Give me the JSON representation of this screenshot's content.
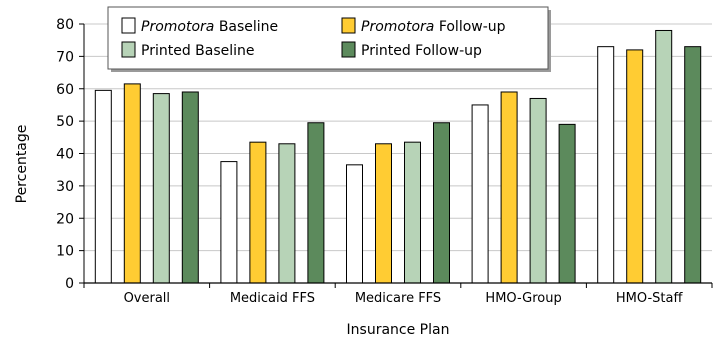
{
  "chart_data": {
    "type": "bar",
    "title": "",
    "xlabel": "Insurance Plan",
    "ylabel": "Percentage",
    "ylim": [
      0,
      80
    ],
    "yticks": [
      0,
      10,
      20,
      30,
      40,
      50,
      60,
      70,
      80
    ],
    "grid": "horizontal",
    "legend_position": "top-left",
    "categories": [
      "Overall",
      "Medicaid FFS",
      "Medicare FFS",
      "HMO-Group",
      "HMO-Staff"
    ],
    "series": [
      {
        "name": "Baseline",
        "name_prefix": "Promotora",
        "color": "#ffffff",
        "values": [
          59.5,
          37.5,
          36.5,
          55,
          73
        ]
      },
      {
        "name": "Follow-up",
        "name_prefix": "Promotora",
        "color": "#ffcc33",
        "values": [
          61.5,
          43.5,
          43,
          59,
          72
        ]
      },
      {
        "name": "Printed Baseline",
        "name_prefix": "",
        "color": "#b7d3b7",
        "values": [
          58.5,
          43,
          43.5,
          57,
          78
        ]
      },
      {
        "name": "Printed Follow-up",
        "name_prefix": "",
        "color": "#5c8a5c",
        "values": [
          59,
          49.5,
          49.5,
          49,
          73
        ]
      }
    ]
  }
}
